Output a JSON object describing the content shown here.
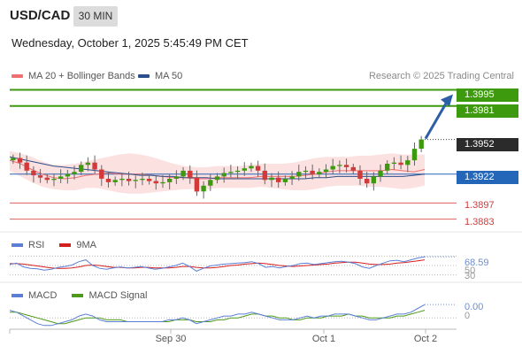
{
  "header": {
    "symbol": "USD/CAD",
    "timeframe": "30 MIN"
  },
  "date_line": "Wednesday, October 1, 2025 5:45:49 PM CET",
  "legend": {
    "ma20": {
      "label": "MA 20 + Bollinger Bands",
      "color": "#f07070"
    },
    "ma50": {
      "label": "MA 50",
      "color": "#2b4f8a"
    }
  },
  "research": "Research © 2025 Trading Central",
  "price_levels": {
    "r2": "1.3995",
    "r1": "1.3981",
    "last": "1.3952",
    "pivot": "1.3922",
    "s1": "1.3897",
    "s2": "1.3883"
  },
  "rsi": {
    "label": "RSI",
    "ma_label": "9MA",
    "rsi_color": "#5b7fd6",
    "ma_color": "#d41f1f",
    "value": "68.59",
    "ref_upper": "50",
    "ref_lower": "30"
  },
  "macd": {
    "label": "MACD",
    "signal_label": "MACD Signal",
    "macd_color": "#5b7fd6",
    "signal_color": "#4d9a1a",
    "value": "0.00",
    "zero": "0"
  },
  "chart_data": {
    "type": "candlestick",
    "ylim": [
      1.3872,
      1.4
    ],
    "x_tick_labels": [
      "Sep 30",
      "Oct 1",
      "Oct 2"
    ],
    "levels": [
      1.3995,
      1.3981,
      1.3922,
      1.3897,
      1.3883
    ],
    "last_price": 1.3952,
    "bb_upper": [
      1.3942,
      1.394,
      1.3937,
      1.3933,
      1.393,
      1.393,
      1.3931,
      1.3933,
      1.3935,
      1.3937,
      1.3939,
      1.394,
      1.3939,
      1.3937,
      1.3934,
      1.3931,
      1.3929,
      1.3928,
      1.3928,
      1.3929,
      1.3929,
      1.3929,
      1.393,
      1.3931,
      1.3931,
      1.3931,
      1.3932,
      1.3934,
      1.3936,
      1.3937,
      1.3937,
      1.3937,
      1.3938,
      1.3938,
      1.3939,
      1.394,
      1.3939,
      1.3939,
      1.3939
    ],
    "bb_lower": [
      1.3925,
      1.392,
      1.3915,
      1.3911,
      1.3909,
      1.3908,
      1.3908,
      1.391,
      1.391,
      1.3908,
      1.3906,
      1.3905,
      1.3905,
      1.3906,
      1.3907,
      1.3908,
      1.3909,
      1.3909,
      1.3909,
      1.391,
      1.391,
      1.391,
      1.391,
      1.3911,
      1.391,
      1.3909,
      1.3908,
      1.3908,
      1.3909,
      1.3911,
      1.3912,
      1.3912,
      1.3912,
      1.3911,
      1.3911,
      1.391,
      1.3909,
      1.391,
      1.3912
    ],
    "ma20": [
      1.3934,
      1.3931,
      1.3926,
      1.3922,
      1.3919,
      1.3918,
      1.3919,
      1.3921,
      1.3922,
      1.3923,
      1.3922,
      1.3922,
      1.3922,
      1.3921,
      1.392,
      1.3919,
      1.3919,
      1.3918,
      1.3918,
      1.3919,
      1.3919,
      1.3919,
      1.3919,
      1.392,
      1.392,
      1.392,
      1.392,
      1.3921,
      1.3922,
      1.3924,
      1.3925,
      1.3925,
      1.3925,
      1.3925,
      1.3925,
      1.3926,
      1.3925,
      1.3924,
      1.3926
    ],
    "ma50": [
      1.3937,
      1.3935,
      1.3933,
      1.3931,
      1.3929,
      1.3928,
      1.3927,
      1.3926,
      1.3925,
      1.3924,
      1.3923,
      1.3922,
      1.3921,
      1.3921,
      1.392,
      1.392,
      1.3919,
      1.3919,
      1.3919,
      1.3918,
      1.3918,
      1.3918,
      1.3918,
      1.3918,
      1.3918,
      1.3918,
      1.3918,
      1.3918,
      1.3919,
      1.3919,
      1.392,
      1.392,
      1.392,
      1.392,
      1.392,
      1.392,
      1.392,
      1.3921,
      1.3922
    ],
    "close": [
      1.3936,
      1.3932,
      1.3925,
      1.3921,
      1.3919,
      1.3917,
      1.3918,
      1.392,
      1.3922,
      1.3924,
      1.393,
      1.3932,
      1.3926,
      1.3918,
      1.3915,
      1.3917,
      1.3918,
      1.3916,
      1.3917,
      1.3918,
      1.3916,
      1.3914,
      1.3915,
      1.3918,
      1.392,
      1.3925,
      1.3919,
      1.3907,
      1.3912,
      1.3917,
      1.392,
      1.3923,
      1.3924,
      1.3925,
      1.3927,
      1.3929,
      1.3925,
      1.3917,
      1.3919,
      1.3915,
      1.3918,
      1.392,
      1.3924,
      1.3925,
      1.3922,
      1.3924,
      1.3926,
      1.3929,
      1.393,
      1.3928,
      1.3925,
      1.3918,
      1.3914,
      1.392,
      1.3925,
      1.3931,
      1.3932,
      1.393,
      1.3934,
      1.3944,
      1.3952
    ],
    "rsi": [
      52,
      55,
      47,
      44,
      43,
      40,
      42,
      46,
      48,
      51,
      58,
      62,
      50,
      44,
      42,
      45,
      47,
      45,
      46,
      48,
      45,
      42,
      44,
      47,
      50,
      55,
      48,
      38,
      44,
      49,
      51,
      53,
      54,
      55,
      56,
      58,
      54,
      46,
      48,
      45,
      48,
      50,
      54,
      55,
      52,
      54,
      56,
      58,
      59,
      57,
      54,
      47,
      44,
      50,
      55,
      60,
      61,
      58,
      62,
      66,
      68.59
    ],
    "rsi_ma": [
      54,
      54,
      53,
      51,
      49,
      47,
      45,
      44,
      44,
      45,
      47,
      50,
      51,
      50,
      48,
      46,
      46,
      45,
      45,
      46,
      46,
      45,
      45,
      45,
      46,
      48,
      48,
      46,
      45,
      45,
      46,
      48,
      50,
      51,
      53,
      54,
      55,
      54,
      52,
      50,
      49,
      48,
      49,
      50,
      51,
      52,
      53,
      55,
      56,
      57,
      57,
      55,
      53,
      52,
      52,
      53,
      55,
      56,
      58,
      60,
      62
    ],
    "macd": [
      0.0004,
      0.0003,
      0.0001,
      -0.0001,
      -0.0003,
      -0.0004,
      -0.0004,
      -0.0003,
      -0.0002,
      -0.0001,
      0.0001,
      0.0002,
      0.0001,
      -0.0001,
      -0.0002,
      -0.0002,
      -0.0002,
      -0.0002,
      -0.0002,
      -0.0002,
      -0.0002,
      -0.0002,
      -0.0002,
      -0.0001,
      -0.0001,
      0.0,
      -0.0001,
      -0.0003,
      -0.0002,
      -0.0001,
      0.0,
      0.0001,
      0.0001,
      0.0002,
      0.0002,
      0.0003,
      0.0002,
      0.0001,
      0.0,
      -0.0001,
      -0.0001,
      -0.0001,
      0.0,
      0.0001,
      0.0,
      0.0001,
      0.0001,
      0.0002,
      0.0002,
      0.0002,
      0.0001,
      0.0,
      -0.0001,
      -0.0001,
      0.0,
      0.0001,
      0.0002,
      0.0002,
      0.0003,
      0.0005,
      0.0007
    ],
    "macd_signal": [
      0.0003,
      0.0003,
      0.0002,
      0.0001,
      0.0,
      -0.0001,
      -0.0002,
      -0.0003,
      -0.0003,
      -0.0002,
      -0.0001,
      0.0,
      0.0,
      0.0,
      -0.0001,
      -0.0001,
      -0.0001,
      -0.0002,
      -0.0002,
      -0.0002,
      -0.0002,
      -0.0002,
      -0.0002,
      -0.0002,
      -0.0001,
      -0.0001,
      -0.0001,
      -0.0002,
      -0.0002,
      -0.0002,
      -0.0001,
      -0.0001,
      0.0,
      0.0,
      0.0001,
      0.0002,
      0.0002,
      0.0001,
      0.0001,
      0.0,
      0.0,
      -0.0001,
      -0.0001,
      0.0,
      0.0,
      0.0,
      0.0001,
      0.0001,
      0.0001,
      0.0002,
      0.0001,
      0.0001,
      0.0,
      0.0,
      0.0,
      0.0,
      0.0001,
      0.0001,
      0.0002,
      0.0003,
      0.0004
    ]
  }
}
